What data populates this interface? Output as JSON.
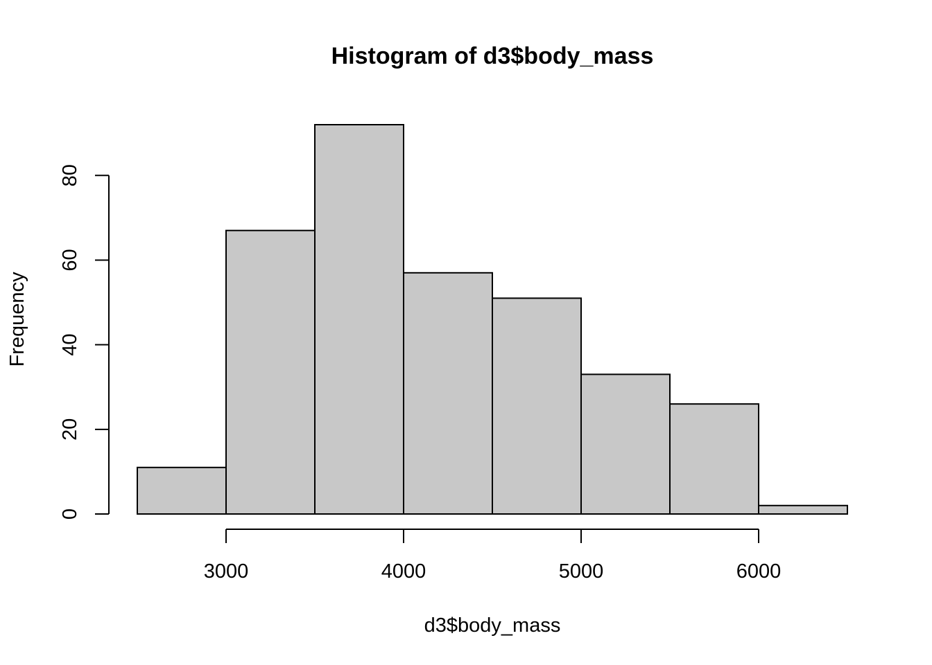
{
  "chart_data": {
    "type": "bar",
    "title": "Histogram of d3$body_mass",
    "xlabel": "d3$body_mass",
    "ylabel": "Frequency",
    "bins": [
      {
        "start": 2500,
        "end": 3000,
        "count": 11
      },
      {
        "start": 3000,
        "end": 3500,
        "count": 67
      },
      {
        "start": 3500,
        "end": 4000,
        "count": 92
      },
      {
        "start": 4000,
        "end": 4500,
        "count": 57
      },
      {
        "start": 4500,
        "end": 5000,
        "count": 51
      },
      {
        "start": 5000,
        "end": 5500,
        "count": 33
      },
      {
        "start": 5500,
        "end": 6000,
        "count": 26
      },
      {
        "start": 6000,
        "end": 6500,
        "count": 2
      }
    ],
    "xlim": [
      2500,
      6500
    ],
    "ylim": [
      0,
      92
    ],
    "x_ticks": [
      3000,
      4000,
      5000,
      6000
    ],
    "x_tick_labels": [
      "3000",
      "4000",
      "5000",
      "6000"
    ],
    "y_ticks": [
      0,
      20,
      40,
      60,
      80
    ],
    "y_tick_labels": [
      "0",
      "20",
      "40",
      "60",
      "80"
    ],
    "bar_color": "#c8c8c8",
    "grid": false
  }
}
